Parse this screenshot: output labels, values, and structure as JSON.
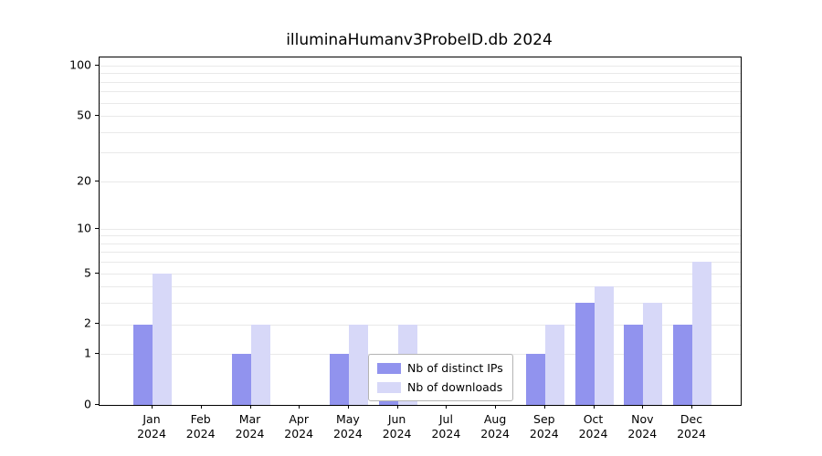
{
  "chart_data": {
    "type": "bar",
    "title": "illuminaHumanv3ProbeID.db 2024",
    "categories": [
      "Jan 2024",
      "Feb 2024",
      "Mar 2024",
      "Apr 2024",
      "May 2024",
      "Jun 2024",
      "Jul 2024",
      "Aug 2024",
      "Sep 2024",
      "Oct 2024",
      "Nov 2024",
      "Dec 2024"
    ],
    "x_tick_line1": [
      "Jan",
      "Feb",
      "Mar",
      "Apr",
      "May",
      "Jun",
      "Jul",
      "Aug",
      "Sep",
      "Oct",
      "Nov",
      "Dec"
    ],
    "x_tick_line2": [
      "2024",
      "2024",
      "2024",
      "2024",
      "2024",
      "2024",
      "2024",
      "2024",
      "2024",
      "2024",
      "2024",
      "2024"
    ],
    "series": [
      {
        "name": "Nb of distinct IPs",
        "color": "#9193ee",
        "values": [
          2,
          0,
          1,
          0,
          1,
          1,
          0,
          0,
          1,
          3,
          2,
          2
        ]
      },
      {
        "name": "Nb of downloads",
        "color": "#d7d8f8",
        "values": [
          5,
          0,
          2,
          0,
          2,
          2,
          0,
          0,
          2,
          4,
          3,
          6
        ]
      }
    ],
    "xlabel": "",
    "ylabel": "",
    "y_scale": "log1p",
    "y_ticks": [
      0,
      1,
      2,
      5,
      10,
      20,
      50,
      100
    ],
    "ylim": [
      0,
      110
    ],
    "grid": "horizontal-minor-log",
    "legend_position": "bottom-center-inside"
  }
}
